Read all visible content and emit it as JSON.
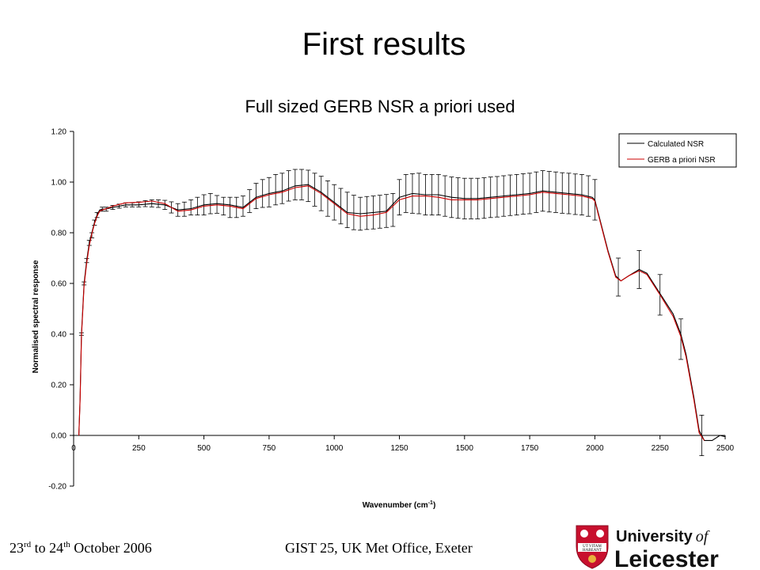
{
  "slide": {
    "title": "First results",
    "footer_date_part1": "23",
    "footer_date_sup1": "rd",
    "footer_date_part2": " to 24",
    "footer_date_sup2": "th",
    "footer_date_part3": " October 2006",
    "footer_event": "GIST 25, UK Met Office, Exeter"
  },
  "logo": {
    "line1_a": "University",
    "line1_b": "of",
    "line2": "Leicester",
    "motto_1": "UT VITAM",
    "motto_2": "HABEANT",
    "shield_color": "#c8102e"
  },
  "chart_data": {
    "type": "line",
    "title": "Full sized GERB NSR a priori used",
    "xlabel": "Wavenumber (cm",
    "xlabel_sup": "-1",
    "xlabel_end": ")",
    "ylabel": "Normalised spectral response",
    "xlim": [
      0,
      2500
    ],
    "ylim": [
      -0.2,
      1.2
    ],
    "x_ticks": [
      "0",
      "250",
      "500",
      "750",
      "1000",
      "1250",
      "1500",
      "1750",
      "2000",
      "2250",
      "2500"
    ],
    "y_ticks": [
      "-0.20",
      "0.00",
      "0.20",
      "0.40",
      "0.60",
      "0.80",
      "1.00",
      "1.20"
    ],
    "grid": false,
    "legend_position": "top-right",
    "series": [
      {
        "name": "Calculated NSR",
        "color": "#000000",
        "x": [
          20,
          25,
          30,
          40,
          50,
          60,
          70,
          80,
          90,
          100,
          110,
          120,
          130,
          150,
          175,
          200,
          250,
          300,
          350,
          400,
          450,
          500,
          550,
          600,
          650,
          700,
          750,
          800,
          850,
          900,
          950,
          1000,
          1050,
          1100,
          1150,
          1200,
          1250,
          1300,
          1350,
          1400,
          1450,
          1500,
          1550,
          1600,
          1650,
          1700,
          1750,
          1800,
          1850,
          1900,
          1950,
          1990,
          2000,
          2020,
          2050,
          2080,
          2100,
          2130,
          2170,
          2200,
          2250,
          2300,
          2330,
          2350,
          2380,
          2400,
          2420,
          2450,
          2480,
          2500
        ],
        "y": [
          0.0,
          0.15,
          0.4,
          0.6,
          0.69,
          0.76,
          0.8,
          0.84,
          0.87,
          0.89,
          0.893,
          0.893,
          0.895,
          0.9,
          0.905,
          0.91,
          0.91,
          0.915,
          0.91,
          0.89,
          0.895,
          0.91,
          0.915,
          0.91,
          0.9,
          0.94,
          0.955,
          0.965,
          0.985,
          0.99,
          0.96,
          0.92,
          0.88,
          0.875,
          0.88,
          0.885,
          0.94,
          0.955,
          0.95,
          0.95,
          0.94,
          0.935,
          0.935,
          0.94,
          0.945,
          0.95,
          0.955,
          0.965,
          0.96,
          0.955,
          0.95,
          0.94,
          0.93,
          0.85,
          0.73,
          0.63,
          0.61,
          0.63,
          0.655,
          0.64,
          0.56,
          0.48,
          0.4,
          0.32,
          0.15,
          0.02,
          -0.02,
          -0.02,
          0.0,
          -0.005
        ]
      },
      {
        "name": "GERB a priori NSR",
        "color": "#cc0000",
        "x": [
          20,
          25,
          30,
          40,
          50,
          60,
          70,
          80,
          90,
          100,
          110,
          120,
          130,
          150,
          175,
          200,
          250,
          300,
          350,
          400,
          450,
          500,
          550,
          600,
          650,
          700,
          750,
          800,
          850,
          900,
          950,
          1000,
          1050,
          1100,
          1150,
          1200,
          1250,
          1300,
          1350,
          1400,
          1450,
          1500,
          1550,
          1600,
          1650,
          1700,
          1750,
          1800,
          1850,
          1900,
          1950,
          1990,
          2000,
          2020,
          2050,
          2080,
          2100,
          2130,
          2170,
          2200,
          2250,
          2300,
          2330,
          2350,
          2380,
          2400,
          2420
        ],
        "y": [
          0.0,
          0.14,
          0.39,
          0.59,
          0.68,
          0.75,
          0.795,
          0.835,
          0.865,
          0.885,
          0.89,
          0.893,
          0.897,
          0.905,
          0.912,
          0.918,
          0.92,
          0.925,
          0.915,
          0.885,
          0.89,
          0.905,
          0.91,
          0.905,
          0.895,
          0.935,
          0.95,
          0.96,
          0.978,
          0.985,
          0.955,
          0.915,
          0.875,
          0.865,
          0.87,
          0.88,
          0.93,
          0.945,
          0.945,
          0.94,
          0.93,
          0.93,
          0.93,
          0.935,
          0.94,
          0.945,
          0.95,
          0.96,
          0.955,
          0.95,
          0.945,
          0.935,
          0.925,
          0.845,
          0.725,
          0.625,
          0.61,
          0.63,
          0.65,
          0.635,
          0.555,
          0.47,
          0.39,
          0.31,
          0.14,
          0.01,
          -0.02
        ]
      }
    ],
    "error_bars": {
      "x": [
        30,
        40,
        50,
        60,
        70,
        80,
        90,
        110,
        125,
        150,
        175,
        200,
        225,
        250,
        275,
        300,
        325,
        350,
        375,
        400,
        425,
        450,
        475,
        500,
        525,
        550,
        575,
        600,
        625,
        650,
        675,
        700,
        725,
        750,
        775,
        800,
        825,
        850,
        875,
        900,
        925,
        950,
        975,
        1000,
        1025,
        1050,
        1075,
        1100,
        1125,
        1150,
        1175,
        1200,
        1225,
        1250,
        1275,
        1300,
        1325,
        1350,
        1375,
        1400,
        1425,
        1450,
        1475,
        1500,
        1525,
        1550,
        1575,
        1600,
        1625,
        1650,
        1675,
        1700,
        1725,
        1750,
        1775,
        1800,
        1825,
        1850,
        1875,
        1900,
        1925,
        1950,
        1975,
        2000,
        2090,
        2170,
        2250,
        2330,
        2410
      ],
      "y": [
        0.4,
        0.6,
        0.69,
        0.76,
        0.79,
        0.84,
        0.87,
        0.893,
        0.893,
        0.9,
        0.905,
        0.91,
        0.91,
        0.912,
        0.915,
        0.916,
        0.915,
        0.91,
        0.9,
        0.89,
        0.893,
        0.9,
        0.905,
        0.91,
        0.915,
        0.912,
        0.905,
        0.9,
        0.9,
        0.905,
        0.925,
        0.945,
        0.955,
        0.96,
        0.97,
        0.975,
        0.985,
        0.99,
        0.99,
        0.985,
        0.97,
        0.955,
        0.935,
        0.92,
        0.905,
        0.89,
        0.88,
        0.875,
        0.878,
        0.88,
        0.883,
        0.886,
        0.89,
        0.94,
        0.955,
        0.955,
        0.955,
        0.95,
        0.95,
        0.95,
        0.945,
        0.94,
        0.937,
        0.935,
        0.935,
        0.935,
        0.937,
        0.94,
        0.942,
        0.945,
        0.948,
        0.95,
        0.953,
        0.955,
        0.96,
        0.965,
        0.962,
        0.96,
        0.957,
        0.955,
        0.952,
        0.95,
        0.945,
        0.93,
        0.625,
        0.655,
        0.555,
        0.38,
        0.0
      ],
      "err": [
        0.005,
        0.006,
        0.008,
        0.01,
        0.01,
        0.01,
        0.01,
        0.008,
        0.008,
        0.008,
        0.008,
        0.008,
        0.008,
        0.01,
        0.012,
        0.014,
        0.015,
        0.018,
        0.022,
        0.025,
        0.028,
        0.03,
        0.035,
        0.04,
        0.04,
        0.035,
        0.035,
        0.04,
        0.04,
        0.04,
        0.045,
        0.05,
        0.055,
        0.058,
        0.06,
        0.06,
        0.06,
        0.06,
        0.06,
        0.062,
        0.065,
        0.068,
        0.07,
        0.07,
        0.07,
        0.07,
        0.068,
        0.065,
        0.065,
        0.065,
        0.065,
        0.065,
        0.065,
        0.07,
        0.075,
        0.078,
        0.08,
        0.08,
        0.08,
        0.08,
        0.08,
        0.08,
        0.08,
        0.08,
        0.08,
        0.08,
        0.08,
        0.08,
        0.08,
        0.08,
        0.08,
        0.08,
        0.08,
        0.08,
        0.08,
        0.08,
        0.08,
        0.08,
        0.08,
        0.08,
        0.08,
        0.08,
        0.08,
        0.08,
        0.075,
        0.075,
        0.08,
        0.08,
        0.08
      ]
    }
  }
}
